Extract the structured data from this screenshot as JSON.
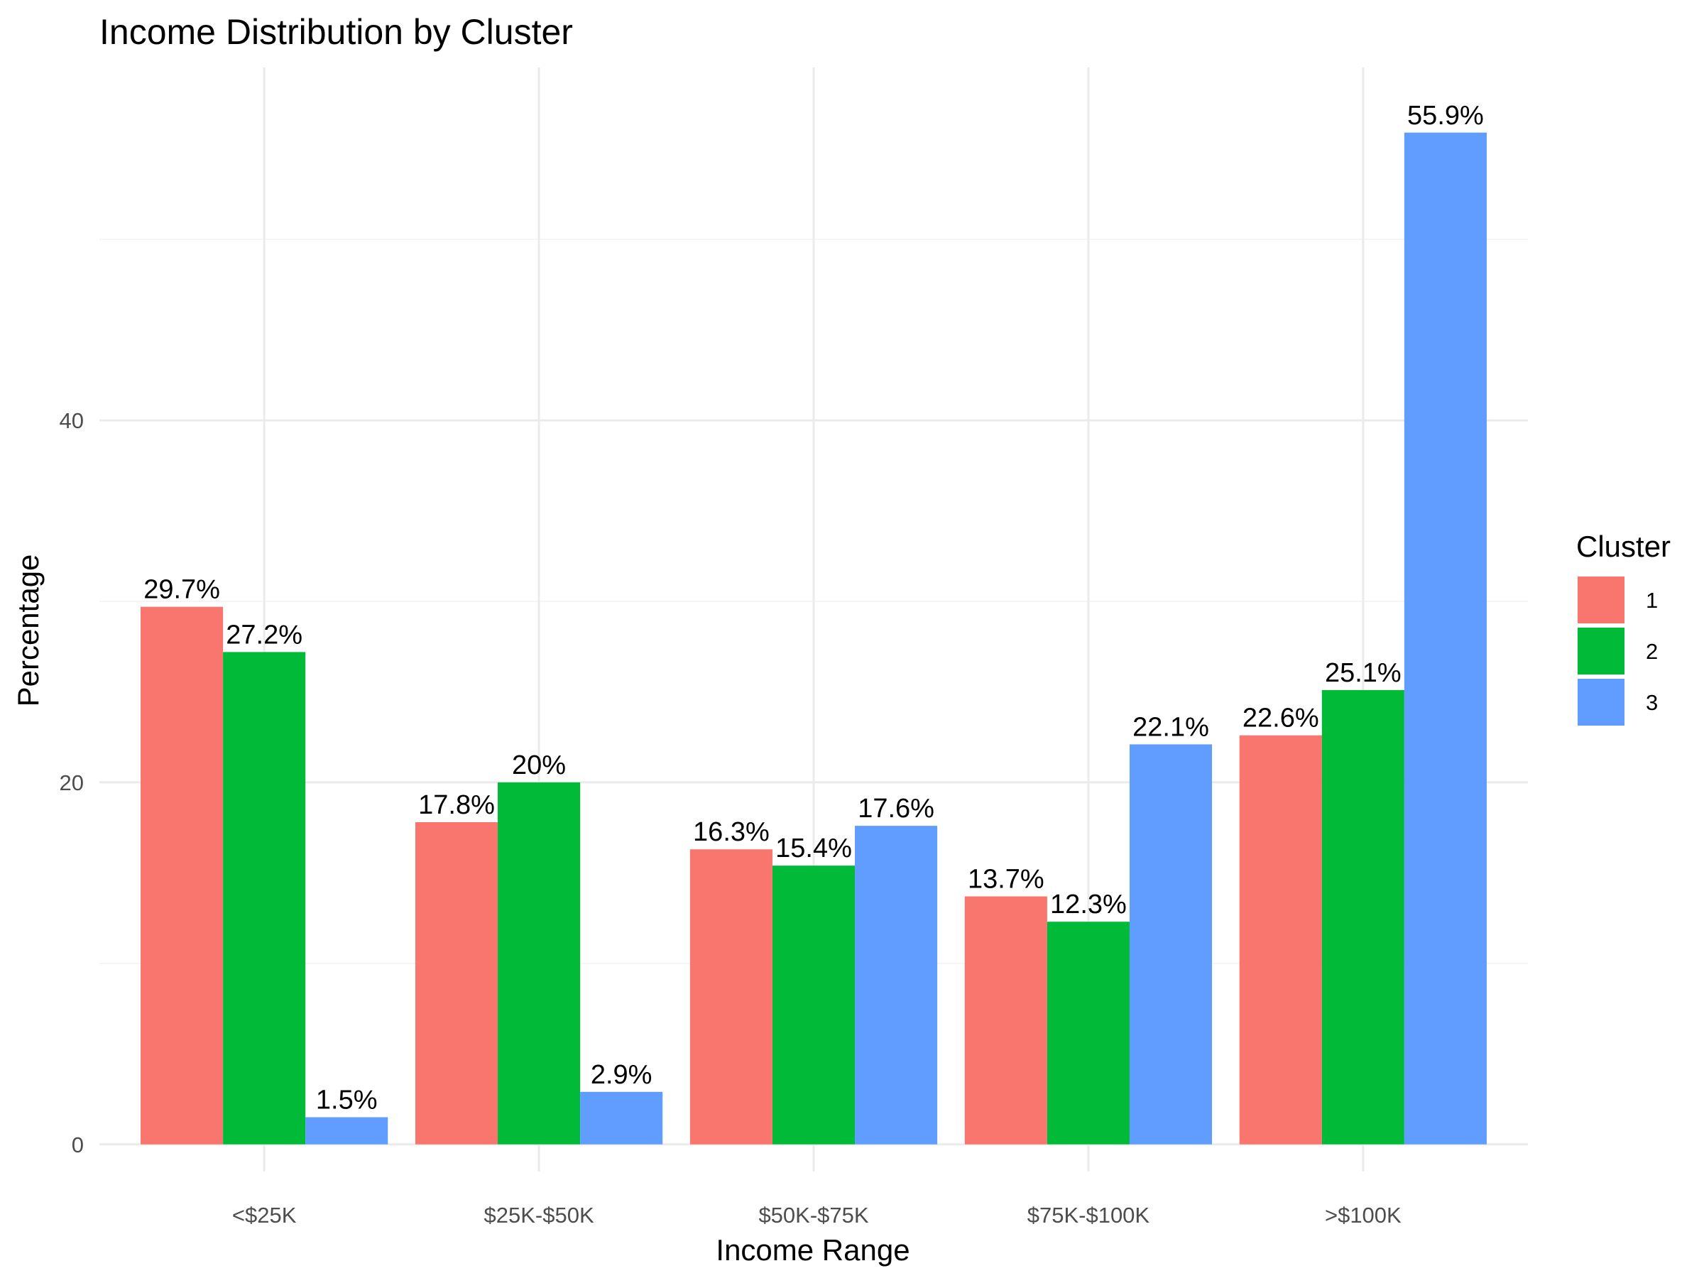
{
  "chart_data": {
    "type": "bar",
    "title": "Income Distribution by Cluster",
    "xlabel": "Income Range",
    "ylabel": "Percentage",
    "categories": [
      "<$25K",
      "$25K-$50K",
      "$50K-$75K",
      "$75K-$100K",
      ">$100K"
    ],
    "ylim": [
      -1.5,
      59.5
    ],
    "yticks": [
      0,
      20,
      40
    ],
    "grid": true,
    "legend": {
      "title": "Cluster",
      "position": "right"
    },
    "series": [
      {
        "name": "1",
        "color": "#F8766D",
        "values": [
          29.7,
          17.8,
          16.3,
          13.7,
          22.6
        ],
        "labels": [
          "29.7%",
          "17.8%",
          "16.3%",
          "13.7%",
          "22.6%"
        ]
      },
      {
        "name": "2",
        "color": "#00BA38",
        "values": [
          27.2,
          20.0,
          15.4,
          12.3,
          25.1
        ],
        "labels": [
          "27.2%",
          "20%",
          "15.4%",
          "12.3%",
          "25.1%"
        ]
      },
      {
        "name": "3",
        "color": "#619CFF",
        "values": [
          1.5,
          2.9,
          17.6,
          22.1,
          55.9
        ],
        "labels": [
          "1.5%",
          "2.9%",
          "17.6%",
          "22.1%",
          "55.9%"
        ]
      }
    ]
  }
}
